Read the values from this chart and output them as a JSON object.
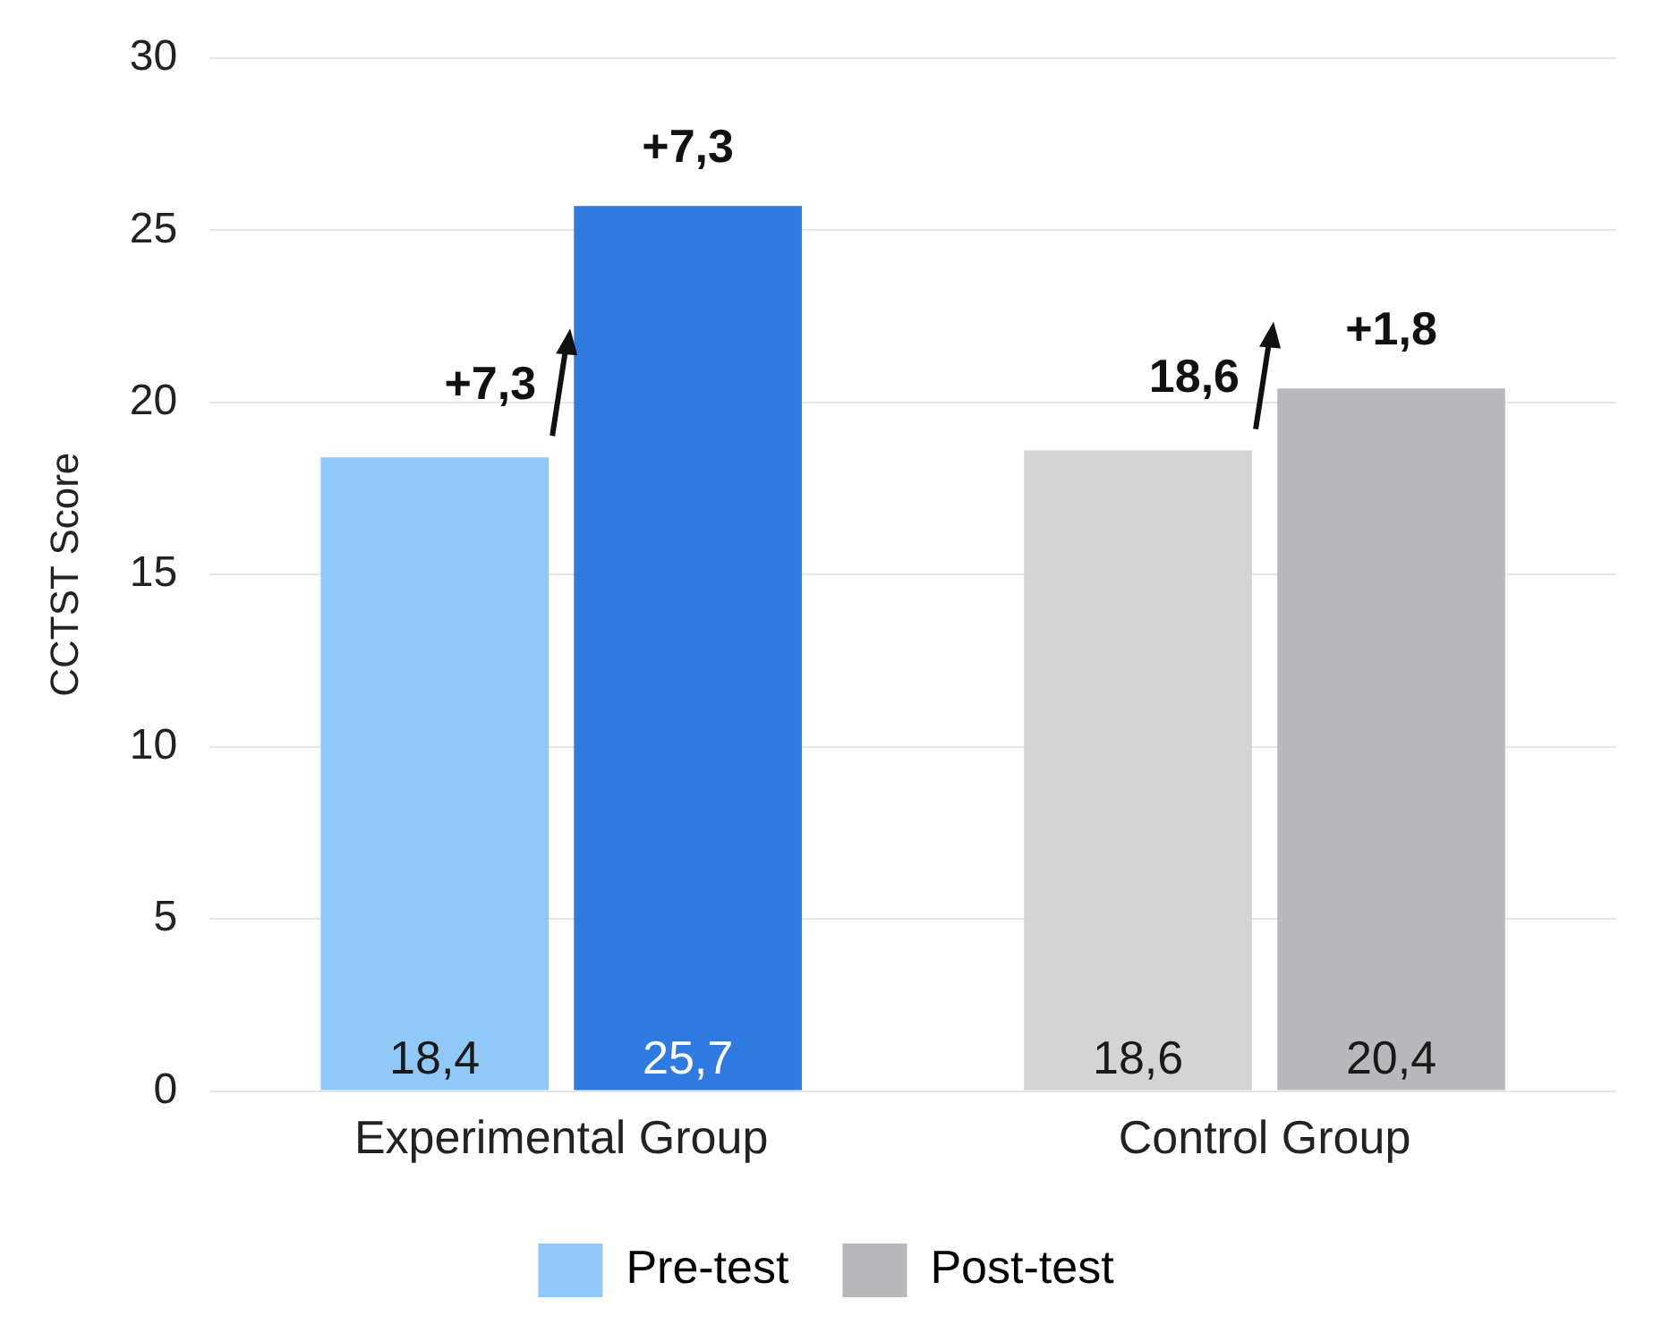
{
  "chart_data": {
    "type": "bar",
    "ylabel": "CCTST Score",
    "categories": [
      "Experimental Group",
      "Control Group"
    ],
    "series": [
      {
        "name": "Pre-test",
        "color": "#90c8f8",
        "colors": [
          "#90c8f8",
          "#d4d4d4"
        ],
        "values": [
          18.4,
          18.6
        ],
        "value_labels": [
          "18,4",
          "18,6"
        ]
      },
      {
        "name": "Post-test",
        "color": "#b9b9bd",
        "colors": [
          "#2f7ae0",
          "#b9b9bd"
        ],
        "values": [
          25.7,
          20.4
        ],
        "value_labels": [
          "25,7",
          "20,4"
        ]
      }
    ],
    "ylim": [
      0,
      30
    ],
    "yticks": [
      0,
      5,
      10,
      15,
      20,
      25,
      30
    ],
    "grid": "y",
    "legend": "bottom",
    "annotations": [
      "+7,3",
      "+7,3",
      "+1,8",
      "18,6"
    ]
  }
}
